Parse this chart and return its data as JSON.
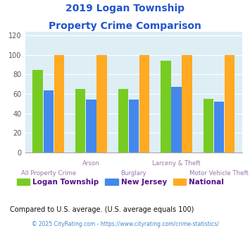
{
  "title_line1": "2019 Logan Township",
  "title_line2": "Property Crime Comparison",
  "categories": [
    "All Property Crime",
    "Arson",
    "Burglary",
    "Larceny & Theft",
    "Motor Vehicle Theft"
  ],
  "logan_values": [
    85,
    65,
    65,
    94,
    55
  ],
  "nj_values": [
    64,
    54,
    54,
    67,
    52
  ],
  "national_values": [
    100,
    100,
    100,
    100,
    100
  ],
  "logan_color": "#77cc22",
  "nj_color": "#4488ee",
  "national_color": "#ffaa22",
  "ylabel_vals": [
    0,
    20,
    40,
    60,
    80,
    100,
    120
  ],
  "ylim": [
    0,
    124
  ],
  "bg_color": "#ddeef5",
  "title_color": "#2255cc",
  "xlabel_color": "#9977aa",
  "legend_label_color": "#551188",
  "note_color": "#111111",
  "footer_color": "#4488cc",
  "note_text": "Compared to U.S. average. (U.S. average equals 100)",
  "footer_text": "© 2025 CityRating.com - https://www.cityrating.com/crime-statistics/",
  "legend_labels": [
    "Logan Township",
    "New Jersey",
    "National"
  ],
  "high_label_indices": [
    1,
    3
  ],
  "low_label_indices": [
    0,
    2,
    4
  ]
}
